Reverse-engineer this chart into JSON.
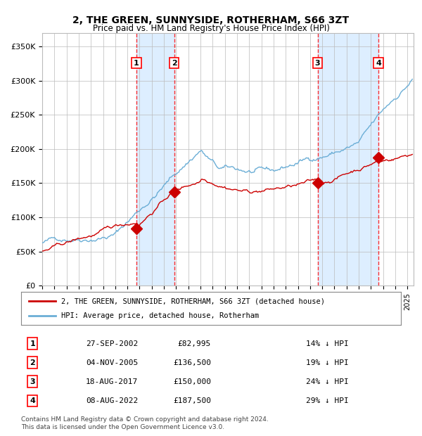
{
  "title": "2, THE GREEN, SUNNYSIDE, ROTHERHAM, S66 3ZT",
  "subtitle": "Price paid vs. HM Land Registry's House Price Index (HPI)",
  "footer": "Contains HM Land Registry data © Crown copyright and database right 2024.\nThis data is licensed under the Open Government Licence v3.0.",
  "legend_line1": "2, THE GREEN, SUNNYSIDE, ROTHERHAM, S66 3ZT (detached house)",
  "legend_line2": "HPI: Average price, detached house, Rotherham",
  "transactions": [
    {
      "num": 1,
      "date": "27-SEP-2002",
      "price": 82995,
      "pct": "14%",
      "x_year": 2002.74
    },
    {
      "num": 2,
      "date": "04-NOV-2005",
      "price": 136500,
      "pct": "19%",
      "x_year": 2005.84
    },
    {
      "num": 3,
      "date": "18-AUG-2017",
      "price": 150000,
      "pct": "24%",
      "x_year": 2017.62
    },
    {
      "num": 4,
      "date": "08-AUG-2022",
      "price": 187500,
      "pct": "29%",
      "x_year": 2022.61
    }
  ],
  "table_rows": [
    {
      "num": 1,
      "date": "27-SEP-2002",
      "price": "£82,995",
      "pct": "14% ↓ HPI"
    },
    {
      "num": 2,
      "date": "04-NOV-2005",
      "price": "£136,500",
      "pct": "19% ↓ HPI"
    },
    {
      "num": 3,
      "date": "18-AUG-2017",
      "price": "£150,000",
      "pct": "24% ↓ HPI"
    },
    {
      "num": 4,
      "date": "08-AUG-2022",
      "price": "£187,500",
      "pct": "29% ↓ HPI"
    }
  ],
  "hpi_color": "#6baed6",
  "price_color": "#cc0000",
  "shading_color": "#ddeeff",
  "grid_color": "#bbbbbb",
  "background_color": "#ffffff",
  "ylim": [
    0,
    370000
  ],
  "xlim_start": 1995.0,
  "xlim_end": 2025.5
}
